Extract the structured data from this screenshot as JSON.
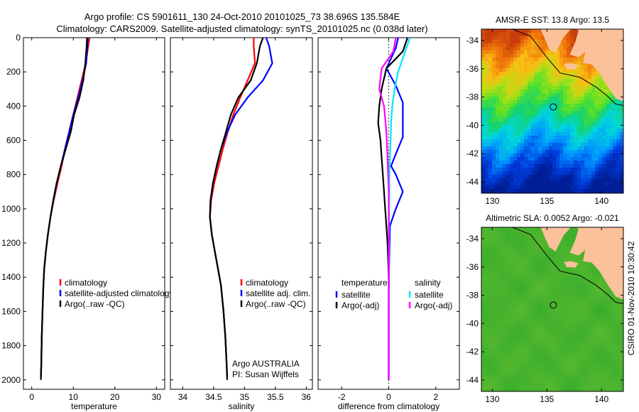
{
  "header": {
    "title_line1": "Argo profile: CS 5901611_130 24-Oct-2010 20101025_73 38.696S 135.584E",
    "title_line2": "Climatology: CARS2009. Satellite-adjusted climatology: synTS_20101025.nc (0.038d later)"
  },
  "colors": {
    "climatology": "#ff0000",
    "satellite_adjusted": "#0000ff",
    "argo": "#000000",
    "satellite_salinity": "#00e5ff",
    "argo_salinity_adj": "#ff00ff"
  },
  "chart_data": [
    {
      "type": "line",
      "xlabel": "temperature",
      "ylabel": "",
      "xlim": [
        -2,
        32
      ],
      "ylim": [
        2050,
        0
      ],
      "y_reversed": true,
      "xticks": [
        0,
        10,
        20,
        30
      ],
      "yticks": [
        0,
        200,
        400,
        600,
        800,
        1000,
        1200,
        1400,
        1600,
        1800,
        2000
      ],
      "series": [
        {
          "name": "climatology",
          "color": "#ff0000",
          "x": [
            13.9,
            13.6,
            13.0,
            12.0,
            11.0,
            10.0,
            9.0,
            8.0,
            7.2,
            6.2,
            5.3,
            4.5,
            3.9,
            3.4,
            3.0,
            2.8,
            2.6,
            2.4,
            2.3,
            2.2
          ],
          "y": [
            0,
            50,
            150,
            250,
            350,
            450,
            550,
            650,
            750,
            850,
            950,
            1050,
            1150,
            1250,
            1350,
            1450,
            1600,
            1750,
            1900,
            1980
          ]
        },
        {
          "name": "satellite-adjusted climatology",
          "color": "#0000ff",
          "x": [
            13.5,
            13.4,
            13.1,
            12.2,
            11.2,
            10.0,
            9.0,
            8.0,
            7.0,
            6.0,
            5.2,
            4.5,
            3.9,
            3.4,
            3.0,
            2.8,
            2.6,
            2.4,
            2.3,
            2.2
          ],
          "y": [
            0,
            50,
            150,
            250,
            350,
            450,
            550,
            650,
            750,
            850,
            950,
            1050,
            1150,
            1250,
            1350,
            1450,
            1600,
            1750,
            1900,
            1980
          ]
        },
        {
          "name": "Argo(..raw -QC)",
          "color": "#000000",
          "x": [
            13.3,
            13.2,
            12.9,
            12.4,
            11.5,
            10.2,
            9.4,
            8.2,
            7.0,
            6.0,
            5.2,
            4.5,
            3.9,
            3.4,
            3.0,
            2.8,
            2.6,
            2.4,
            2.3,
            2.2
          ],
          "y": [
            0,
            50,
            150,
            250,
            350,
            450,
            550,
            650,
            750,
            850,
            950,
            1050,
            1150,
            1250,
            1350,
            1450,
            1600,
            1750,
            1900,
            2000
          ]
        }
      ],
      "legend": {
        "position": "lower-middle",
        "entries": [
          "climatology",
          "satellite-adjusted climatology",
          "Argo(..raw -QC)"
        ]
      }
    },
    {
      "type": "line",
      "xlabel": "salinity",
      "ylabel": "",
      "xlim": [
        33.8,
        36.1
      ],
      "ylim": [
        2050,
        0
      ],
      "y_reversed": true,
      "xticks": [
        34,
        34.5,
        35,
        35.5,
        36
      ],
      "yticks": [
        0,
        200,
        400,
        600,
        800,
        1000,
        1200,
        1400,
        1600,
        1800,
        2000
      ],
      "series": [
        {
          "name": "climatology",
          "color": "#ff0000",
          "x": [
            35.15,
            35.15,
            35.17,
            35.05,
            34.93,
            34.82,
            34.73,
            34.65,
            34.58,
            34.51,
            34.46,
            34.44,
            34.47,
            34.52,
            34.57,
            34.62,
            34.66,
            34.69,
            34.71,
            34.72
          ],
          "y": [
            0,
            50,
            150,
            250,
            350,
            450,
            550,
            650,
            750,
            850,
            950,
            1050,
            1150,
            1250,
            1350,
            1450,
            1600,
            1750,
            1900,
            1980
          ]
        },
        {
          "name": "satellite adj. clim.",
          "color": "#0000ff",
          "x": [
            35.35,
            35.4,
            35.45,
            35.3,
            35.05,
            34.85,
            34.72,
            34.62,
            34.55,
            34.49,
            34.45,
            34.44,
            34.47,
            34.52,
            34.57,
            34.62,
            34.66,
            34.69,
            34.71,
            34.72
          ],
          "y": [
            0,
            50,
            150,
            250,
            350,
            450,
            550,
            650,
            750,
            850,
            950,
            1050,
            1150,
            1250,
            1350,
            1450,
            1600,
            1750,
            1900,
            1980
          ]
        },
        {
          "name": "Argo(..raw -QC)",
          "color": "#000000",
          "x": [
            35.3,
            35.25,
            35.2,
            35.1,
            34.9,
            34.78,
            34.7,
            34.62,
            34.55,
            34.49,
            34.45,
            34.44,
            34.47,
            34.52,
            34.57,
            34.62,
            34.66,
            34.69,
            34.71,
            34.72
          ],
          "y": [
            0,
            50,
            150,
            250,
            350,
            450,
            550,
            650,
            750,
            850,
            950,
            1050,
            1150,
            1250,
            1350,
            1450,
            1600,
            1750,
            1900,
            2000
          ]
        }
      ],
      "legend": {
        "position": "lower-middle",
        "entries": [
          "climatology",
          "satellite adj. clim.",
          "Argo(..raw -QC)"
        ]
      },
      "annotations": [
        "Argo AUSTRALIA",
        "PI: Susan Wijffels"
      ]
    },
    {
      "type": "line",
      "xlabel": "difference from climatology",
      "ylabel": "",
      "xlim": [
        -3,
        3
      ],
      "ylim": [
        2050,
        0
      ],
      "y_reversed": true,
      "xticks": [
        -2,
        0,
        2
      ],
      "yticks": [
        0,
        200,
        400,
        600,
        800,
        1000,
        1200,
        1400,
        1600,
        1800,
        2000
      ],
      "series": [
        {
          "name": "temperature satellite",
          "color": "#0000ff",
          "x": [
            0.4,
            0.3,
            -0.1,
            0.3,
            0.6,
            0.6,
            0.6,
            0.3,
            0.1,
            0.3,
            0.6,
            0.3,
            0.05,
            0.02,
            0.0,
            0.0,
            0.0
          ],
          "y": [
            0,
            60,
            180,
            280,
            380,
            480,
            580,
            680,
            750,
            800,
            900,
            1000,
            1100,
            1300,
            1500,
            1800,
            2000
          ]
        },
        {
          "name": "temperature Argo(-adj)",
          "color": "#000000",
          "x": [
            0.8,
            0.6,
            -0.1,
            -0.3,
            -0.4,
            -0.45,
            -0.35,
            -0.3,
            -0.25,
            -0.2,
            -0.15,
            -0.1,
            -0.05,
            0.0,
            0.0
          ],
          "y": [
            0,
            80,
            180,
            300,
            400,
            500,
            600,
            700,
            800,
            900,
            1000,
            1100,
            1200,
            1400,
            2000
          ]
        },
        {
          "name": "salinity satellite",
          "color": "#00e5ff",
          "x": [
            0.9,
            0.7,
            0.4,
            0.25,
            0.15,
            0.1,
            0.08,
            0.05,
            0.03,
            0.02,
            0.01,
            0.0,
            0.0
          ],
          "y": [
            0,
            80,
            200,
            300,
            400,
            500,
            600,
            700,
            800,
            1000,
            1200,
            1600,
            2000
          ]
        },
        {
          "name": "salinity Argo(-adj)",
          "color": "#ff00ff",
          "x": [
            0.3,
            0.2,
            -0.3,
            -0.4,
            -0.2,
            -0.1,
            -0.05,
            0.0,
            0.0,
            0.0
          ],
          "y": [
            0,
            80,
            180,
            300,
            400,
            550,
            700,
            900,
            1400,
            2000
          ]
        }
      ],
      "legend": {
        "position": "lower-middle",
        "groups": [
          {
            "heading": "temperature",
            "entries": [
              "satellite",
              "Argo(-adj)"
            ]
          },
          {
            "heading": "salinity",
            "entries": [
              "satellite",
              "Argo(-adj)"
            ]
          }
        ]
      }
    },
    {
      "type": "heatmap",
      "title": "AMSR-E SST: 13.8 Argo: 13.5",
      "xlim": [
        129,
        142
      ],
      "ylim": [
        -44.8,
        -33.2
      ],
      "xticks": [
        130,
        135,
        140
      ],
      "yticks": [
        -34,
        -36,
        -38,
        -40,
        -42,
        -44
      ],
      "argo_location": {
        "lon": 135.584,
        "lat": -38.696
      }
    },
    {
      "type": "heatmap",
      "title": "Altimetric SLA: 0.0052 Argo: -0.021",
      "xlim": [
        129,
        142
      ],
      "ylim": [
        -44.8,
        -33.2
      ],
      "xticks": [
        130,
        135,
        140
      ],
      "yticks": [
        -34,
        -36,
        -38,
        -40,
        -42,
        -44
      ],
      "argo_location": {
        "lon": 135.584,
        "lat": -38.696
      }
    }
  ],
  "side_caption": "CSIRO 01-Nov-2010 10:30:42"
}
